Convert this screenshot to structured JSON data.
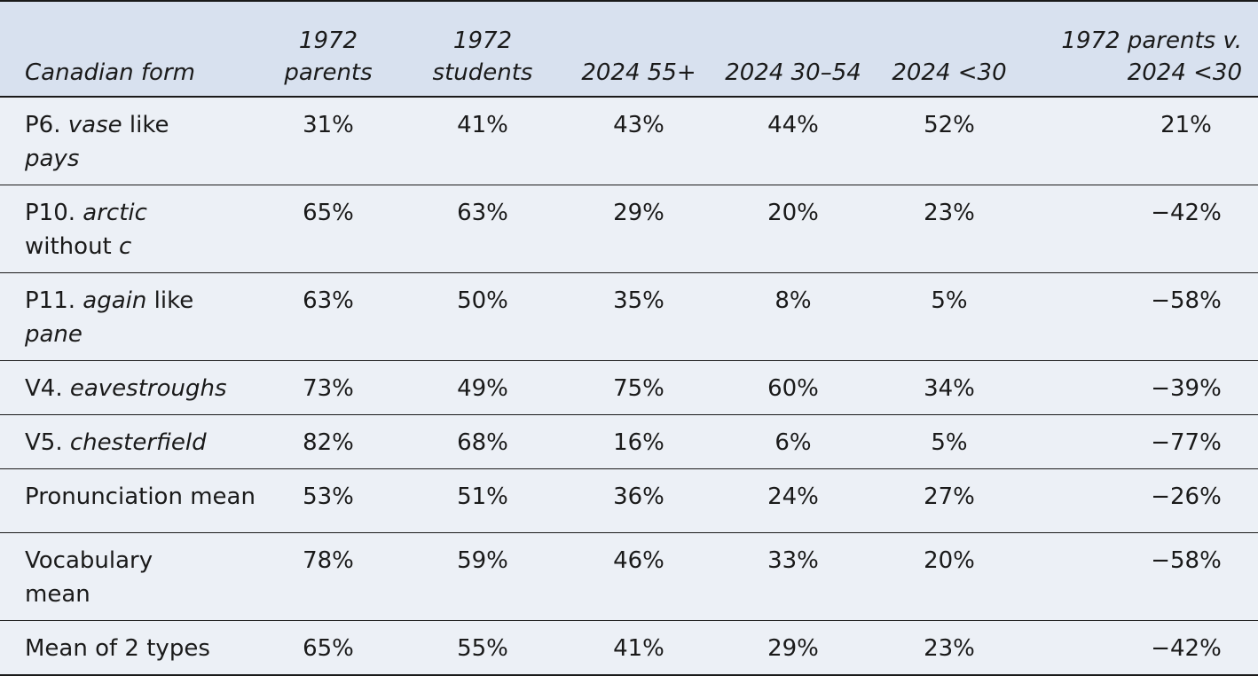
{
  "table": {
    "headers": [
      "Canadian form",
      "1972 parents",
      "1972 students",
      "2024 55+",
      "2024 30–54",
      "2024 <30",
      "1972 parents v. 2024 <30"
    ],
    "rows": [
      {
        "prefix": "P6.",
        "term": "vase",
        "rest1": "like",
        "rest2": "pays",
        "values": [
          "31%",
          "41%",
          "43%",
          "44%",
          "52%",
          "21%"
        ]
      },
      {
        "prefix": "P10.",
        "term": "arctic",
        "rest1": "without",
        "rest2": "c",
        "values": [
          "65%",
          "63%",
          "29%",
          "20%",
          "23%",
          "−42%"
        ]
      },
      {
        "prefix": "P11.",
        "term": "again",
        "rest1": "like",
        "rest2": "pane",
        "values": [
          "63%",
          "50%",
          "35%",
          "8%",
          "5%",
          "−58%"
        ]
      },
      {
        "prefix": "V4.",
        "term": "eavestroughs",
        "values": [
          "73%",
          "49%",
          "75%",
          "60%",
          "34%",
          "−39%"
        ]
      },
      {
        "prefix": "V5.",
        "term": "chesterfield",
        "values": [
          "82%",
          "68%",
          "16%",
          "6%",
          "5%",
          "−77%"
        ]
      },
      {
        "label": "Pronunciation mean",
        "values": [
          "53%",
          "51%",
          "36%",
          "24%",
          "27%",
          "−26%"
        ]
      },
      {
        "label": "Vocabulary mean",
        "values": [
          "78%",
          "59%",
          "46%",
          "33%",
          "20%",
          "−58%"
        ]
      },
      {
        "label": "Mean of 2 types",
        "values": [
          "65%",
          "55%",
          "41%",
          "29%",
          "23%",
          "−42%"
        ]
      }
    ]
  }
}
